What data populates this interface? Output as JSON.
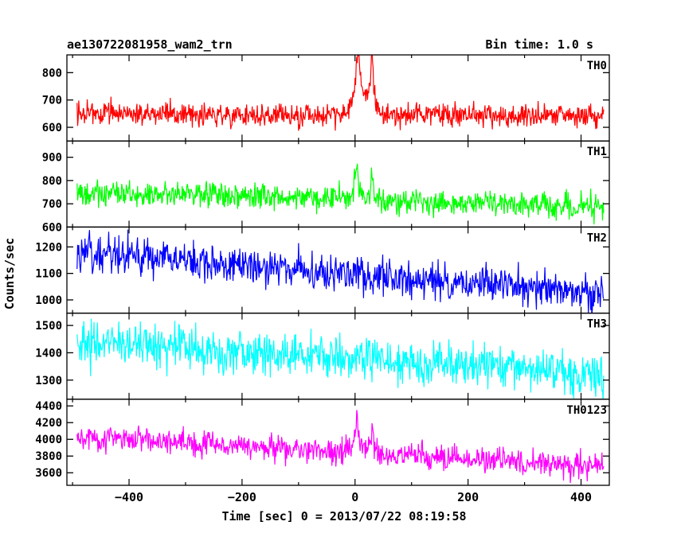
{
  "chart_data": {
    "type": "line",
    "title_left": "ae130722081958_wam2_trn",
    "title_right": "Bin time: 1.0 s",
    "xlabel": "Time [sec] 0 = 2013/07/22 08:19:58",
    "ylabel": "Counts/sec",
    "xlim": [
      -510,
      450
    ],
    "xticks": [
      -400,
      -200,
      0,
      200,
      400
    ],
    "shared_x": true,
    "grid": false,
    "panels": [
      {
        "name": "TH0",
        "color": "#ff0000",
        "ylim": [
          550,
          865
        ],
        "yticks": [
          600,
          700,
          800
        ],
        "baseline": {
          "start": 650,
          "end": 640
        },
        "noise": 22,
        "peaks": [
          {
            "t": 5,
            "amp": 260,
            "width": 7
          },
          {
            "t": 30,
            "amp": 230,
            "width": 5
          }
        ]
      },
      {
        "name": "TH1",
        "color": "#00ff00",
        "ylim": [
          600,
          970
        ],
        "yticks": [
          600,
          700,
          800,
          900
        ],
        "baseline": {
          "start": 752,
          "end": 688
        },
        "noise": 28,
        "peaks": [
          {
            "t": 3,
            "amp": 190,
            "width": 4
          },
          {
            "t": 30,
            "amp": 100,
            "width": 3
          }
        ]
      },
      {
        "name": "TH2",
        "color": "#0000ff",
        "ylim": [
          950,
          1275
        ],
        "yticks": [
          1000,
          1100,
          1200
        ],
        "baseline": {
          "start": 1185,
          "end": 1020
        },
        "noise": 35,
        "peaks": []
      },
      {
        "name": "TH3",
        "color": "#00ffff",
        "ylim": [
          1230,
          1545
        ],
        "yticks": [
          1300,
          1400,
          1500
        ],
        "baseline": {
          "start": 1445,
          "end": 1320
        },
        "noise": 38,
        "peaks": []
      },
      {
        "name": "TH0123",
        "color": "#ff00ff",
        "ylim": [
          3450,
          4480
        ],
        "yticks": [
          3600,
          3800,
          4000,
          4200,
          4400
        ],
        "baseline": {
          "start": 4040,
          "end": 3660
        },
        "noise": 75,
        "peaks": [
          {
            "t": 3,
            "amp": 500,
            "width": 5
          },
          {
            "t": 30,
            "amp": 300,
            "width": 4
          }
        ]
      }
    ]
  }
}
